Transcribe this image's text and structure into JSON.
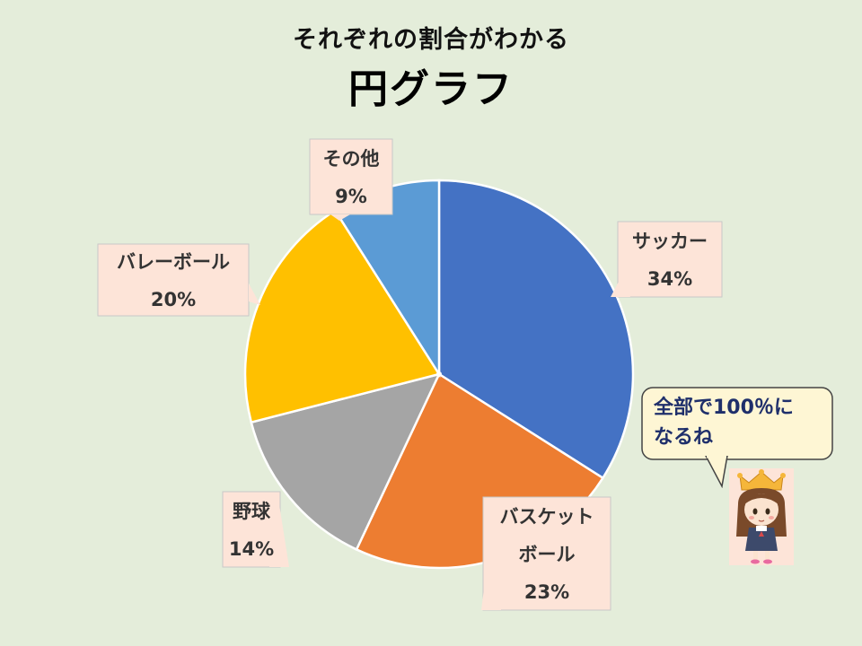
{
  "header": {
    "subtitle": "それぞれの割合がわかる",
    "title": "円グラフ"
  },
  "chart_data": {
    "type": "pie",
    "start_angle_deg": 0,
    "direction": "clockwise",
    "slices": [
      {
        "label": "サッカー",
        "label_lines": [
          "サッカー"
        ],
        "value": 34,
        "value_label": "34%",
        "color": "#4472c4"
      },
      {
        "label": "バスケットボール",
        "label_lines": [
          "バスケット",
          "ボール"
        ],
        "value": 23,
        "value_label": "23%",
        "color": "#ed7d31"
      },
      {
        "label": "野球",
        "label_lines": [
          "野球"
        ],
        "value": 14,
        "value_label": "14%",
        "color": "#a5a5a5"
      },
      {
        "label": "バレーボール",
        "label_lines": [
          "バレーボール"
        ],
        "value": 20,
        "value_label": "20%",
        "color": "#ffc000"
      },
      {
        "label": "その他",
        "label_lines": [
          "その他"
        ],
        "value": 9,
        "value_label": "9%",
        "color": "#5b9bd5"
      }
    ]
  },
  "speech_bubble": {
    "lines": [
      "全部で100％に",
      "なるね"
    ]
  },
  "colors": {
    "background": "#e4edda",
    "callout_fill": "#fde4d8",
    "bubble_fill": "#fef6d4",
    "bubble_text": "#1f2f6b"
  },
  "decoration": {
    "character": "princess-girl-icon"
  }
}
